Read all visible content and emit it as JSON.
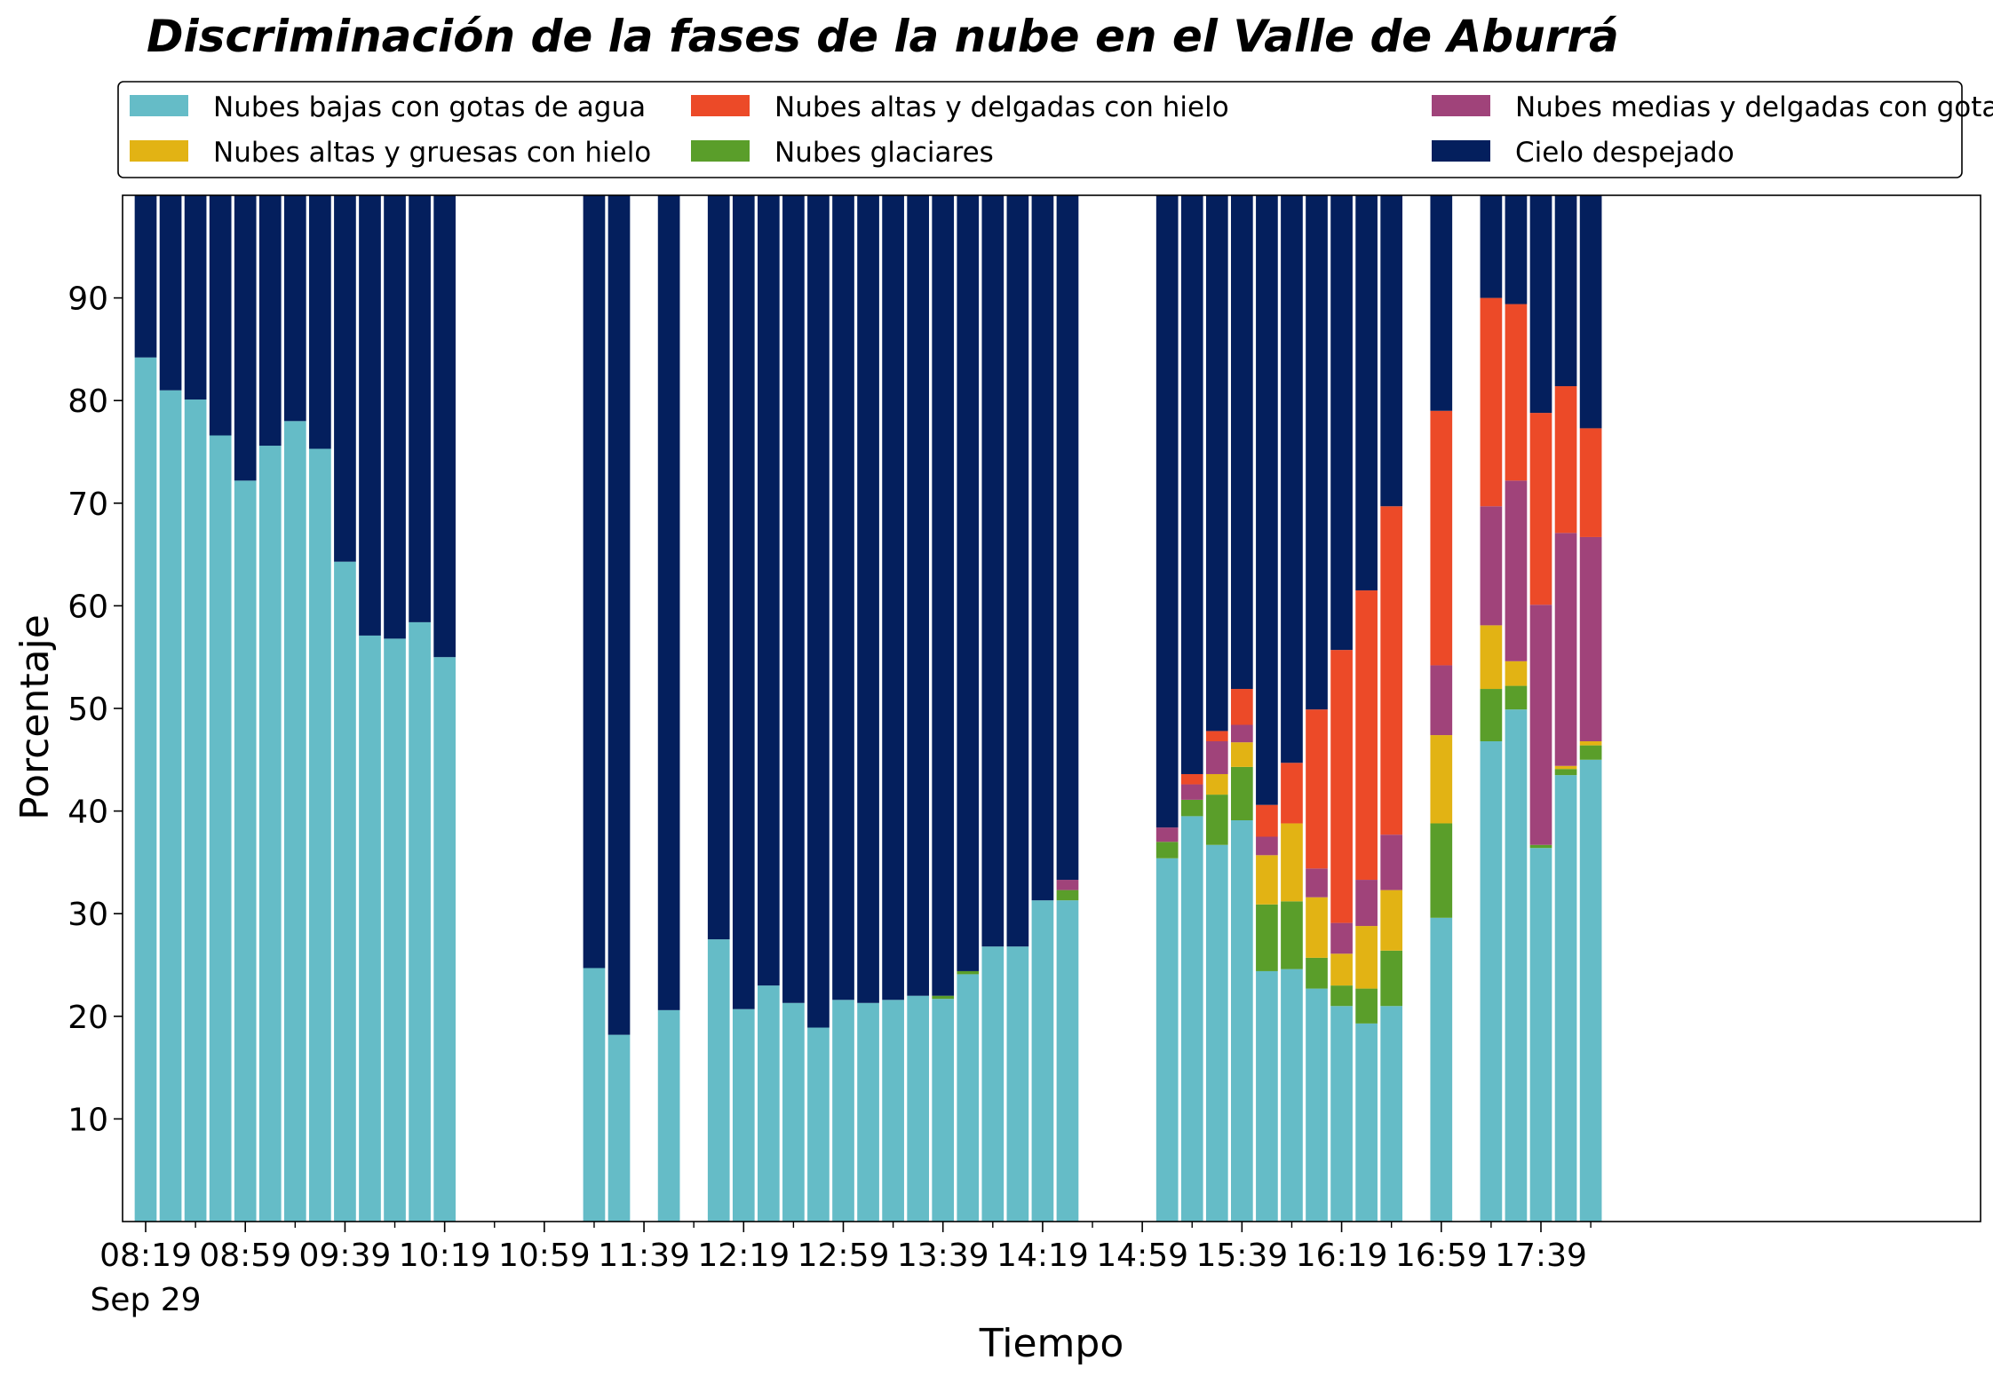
{
  "chart_data": {
    "type": "bar",
    "stacked": true,
    "title": "Discriminación de la fases de la nube en el Valle de Aburrá",
    "xlabel": "Tiempo",
    "ylabel": "Porcentaje",
    "ylim": [
      0,
      100
    ],
    "yticks": [
      10,
      20,
      30,
      40,
      50,
      60,
      70,
      80,
      90
    ],
    "xticks": [
      "08:19",
      "08:59",
      "09:39",
      "10:19",
      "10:59",
      "11:39",
      "12:19",
      "12:59",
      "13:39",
      "14:19",
      "14:59",
      "15:39",
      "16:19",
      "16:59",
      "17:39"
    ],
    "date_label": "Sep 29",
    "legend_position": "top",
    "colors": {
      "bajas": "#65bcc7",
      "glaciares": "#5a9e2a",
      "altas_gruesas": "#e2b314",
      "medias": "#a0437a",
      "altas_delgadas": "#ec4a28",
      "despejado": "#041f5d"
    },
    "series": [
      {
        "name": "Nubes bajas con gotas de agua",
        "key": "bajas"
      },
      {
        "name": "Nubes altas y gruesas con hielo",
        "key": "altas_gruesas"
      },
      {
        "name": "Nubes altas y delgadas con hielo",
        "key": "altas_delgadas"
      },
      {
        "name": "Nubes glaciares",
        "key": "glaciares"
      },
      {
        "name": "Nubes medias y delgadas con gotas de agua",
        "key": "medias"
      },
      {
        "name": "Cielo despejado",
        "key": "despejado"
      }
    ],
    "stack_order": [
      "bajas",
      "glaciares",
      "altas_gruesas",
      "medias",
      "altas_delgadas",
      "despejado"
    ],
    "bars": [
      {
        "time": "08:19",
        "bajas": 84.2,
        "glaciares": 0,
        "altas_gruesas": 0,
        "medias": 0,
        "altas_delgadas": 0
      },
      {
        "time": "08:29",
        "bajas": 81.0,
        "glaciares": 0,
        "altas_gruesas": 0,
        "medias": 0,
        "altas_delgadas": 0
      },
      {
        "time": "08:39",
        "bajas": 80.1,
        "glaciares": 0,
        "altas_gruesas": 0,
        "medias": 0,
        "altas_delgadas": 0
      },
      {
        "time": "08:49",
        "bajas": 76.6,
        "glaciares": 0,
        "altas_gruesas": 0,
        "medias": 0,
        "altas_delgadas": 0
      },
      {
        "time": "08:59",
        "bajas": 72.2,
        "glaciares": 0,
        "altas_gruesas": 0,
        "medias": 0,
        "altas_delgadas": 0
      },
      {
        "time": "09:09",
        "bajas": 75.6,
        "glaciares": 0,
        "altas_gruesas": 0,
        "medias": 0,
        "altas_delgadas": 0
      },
      {
        "time": "09:19",
        "bajas": 78.0,
        "glaciares": 0,
        "altas_gruesas": 0,
        "medias": 0,
        "altas_delgadas": 0
      },
      {
        "time": "09:29",
        "bajas": 75.3,
        "glaciares": 0,
        "altas_gruesas": 0,
        "medias": 0,
        "altas_delgadas": 0
      },
      {
        "time": "09:39",
        "bajas": 64.3,
        "glaciares": 0,
        "altas_gruesas": 0,
        "medias": 0,
        "altas_delgadas": 0
      },
      {
        "time": "09:49",
        "bajas": 57.1,
        "glaciares": 0,
        "altas_gruesas": 0,
        "medias": 0,
        "altas_delgadas": 0
      },
      {
        "time": "09:59",
        "bajas": 56.8,
        "glaciares": 0,
        "altas_gruesas": 0,
        "medias": 0,
        "altas_delgadas": 0
      },
      {
        "time": "10:09",
        "bajas": 58.4,
        "glaciares": 0,
        "altas_gruesas": 0,
        "medias": 0,
        "altas_delgadas": 0
      },
      {
        "time": "10:19",
        "bajas": 55.0,
        "glaciares": 0,
        "altas_gruesas": 0,
        "medias": 0,
        "altas_delgadas": 0
      },
      {
        "time": "11:19",
        "bajas": 24.7,
        "glaciares": 0,
        "altas_gruesas": 0,
        "medias": 0,
        "altas_delgadas": 0
      },
      {
        "time": "11:29",
        "bajas": 18.2,
        "glaciares": 0,
        "altas_gruesas": 0,
        "medias": 0,
        "altas_delgadas": 0
      },
      {
        "time": "11:49",
        "bajas": 20.6,
        "glaciares": 0,
        "altas_gruesas": 0,
        "medias": 0,
        "altas_delgadas": 0
      },
      {
        "time": "12:09",
        "bajas": 27.5,
        "glaciares": 0,
        "altas_gruesas": 0,
        "medias": 0,
        "altas_delgadas": 0
      },
      {
        "time": "12:19",
        "bajas": 20.7,
        "glaciares": 0,
        "altas_gruesas": 0,
        "medias": 0,
        "altas_delgadas": 0
      },
      {
        "time": "12:29",
        "bajas": 23.0,
        "glaciares": 0,
        "altas_gruesas": 0,
        "medias": 0,
        "altas_delgadas": 0
      },
      {
        "time": "12:39",
        "bajas": 21.3,
        "glaciares": 0,
        "altas_gruesas": 0,
        "medias": 0,
        "altas_delgadas": 0
      },
      {
        "time": "12:49",
        "bajas": 18.9,
        "glaciares": 0,
        "altas_gruesas": 0,
        "medias": 0,
        "altas_delgadas": 0
      },
      {
        "time": "12:59",
        "bajas": 21.6,
        "glaciares": 0,
        "altas_gruesas": 0,
        "medias": 0,
        "altas_delgadas": 0
      },
      {
        "time": "13:09",
        "bajas": 21.3,
        "glaciares": 0,
        "altas_gruesas": 0,
        "medias": 0,
        "altas_delgadas": 0
      },
      {
        "time": "13:19",
        "bajas": 21.6,
        "glaciares": 0,
        "altas_gruesas": 0,
        "medias": 0,
        "altas_delgadas": 0
      },
      {
        "time": "13:29",
        "bajas": 22.0,
        "glaciares": 0,
        "altas_gruesas": 0,
        "medias": 0,
        "altas_delgadas": 0
      },
      {
        "time": "13:39",
        "bajas": 21.7,
        "glaciares": 0.3,
        "altas_gruesas": 0,
        "medias": 0,
        "altas_delgadas": 0
      },
      {
        "time": "13:49",
        "bajas": 24.1,
        "glaciares": 0.3,
        "altas_gruesas": 0,
        "medias": 0,
        "altas_delgadas": 0
      },
      {
        "time": "13:59",
        "bajas": 26.8,
        "glaciares": 0,
        "altas_gruesas": 0,
        "medias": 0,
        "altas_delgadas": 0
      },
      {
        "time": "14:09",
        "bajas": 26.8,
        "glaciares": 0,
        "altas_gruesas": 0,
        "medias": 0,
        "altas_delgadas": 0
      },
      {
        "time": "14:19",
        "bajas": 31.3,
        "glaciares": 0,
        "altas_gruesas": 0,
        "medias": 0,
        "altas_delgadas": 0
      },
      {
        "time": "14:29",
        "bajas": 31.3,
        "glaciares": 1.0,
        "altas_gruesas": 0,
        "medias": 1.0,
        "altas_delgadas": 0
      },
      {
        "time": "15:09",
        "bajas": 35.4,
        "glaciares": 1.6,
        "altas_gruesas": 0,
        "medias": 1.4,
        "altas_delgadas": 0
      },
      {
        "time": "15:19",
        "bajas": 39.5,
        "glaciares": 1.6,
        "altas_gruesas": 0,
        "medias": 1.5,
        "altas_delgadas": 1.0
      },
      {
        "time": "15:29",
        "bajas": 36.7,
        "glaciares": 4.9,
        "altas_gruesas": 2.0,
        "medias": 3.2,
        "altas_delgadas": 1.0
      },
      {
        "time": "15:39",
        "bajas": 39.1,
        "glaciares": 5.2,
        "altas_gruesas": 2.4,
        "medias": 1.7,
        "altas_delgadas": 3.5
      },
      {
        "time": "15:49",
        "bajas": 24.4,
        "glaciares": 6.5,
        "altas_gruesas": 4.8,
        "medias": 1.8,
        "altas_delgadas": 3.1
      },
      {
        "time": "15:59",
        "bajas": 24.6,
        "glaciares": 6.6,
        "altas_gruesas": 7.6,
        "medias": 0,
        "altas_delgadas": 5.9
      },
      {
        "time": "16:09",
        "bajas": 22.7,
        "glaciares": 3.0,
        "altas_gruesas": 5.9,
        "medias": 2.8,
        "altas_delgadas": 15.5
      },
      {
        "time": "16:19",
        "bajas": 21.0,
        "glaciares": 2.0,
        "altas_gruesas": 3.1,
        "medias": 3.0,
        "altas_delgadas": 26.6
      },
      {
        "time": "16:29",
        "bajas": 19.3,
        "glaciares": 3.4,
        "altas_gruesas": 6.1,
        "medias": 4.5,
        "altas_delgadas": 28.2
      },
      {
        "time": "16:39",
        "bajas": 21.0,
        "glaciares": 5.4,
        "altas_gruesas": 5.9,
        "medias": 5.4,
        "altas_delgadas": 32.0
      },
      {
        "time": "16:59",
        "bajas": 29.6,
        "glaciares": 9.2,
        "altas_gruesas": 8.6,
        "medias": 6.8,
        "altas_delgadas": 24.8
      },
      {
        "time": "17:19",
        "bajas": 46.8,
        "glaciares": 5.1,
        "altas_gruesas": 6.2,
        "medias": 11.6,
        "altas_delgadas": 20.3
      },
      {
        "time": "17:29",
        "bajas": 49.9,
        "glaciares": 2.3,
        "altas_gruesas": 2.4,
        "medias": 17.6,
        "altas_delgadas": 17.2
      },
      {
        "time": "17:39",
        "bajas": 36.4,
        "glaciares": 0.3,
        "altas_gruesas": 0,
        "medias": 23.4,
        "altas_delgadas": 18.7
      },
      {
        "time": "17:49",
        "bajas": 43.5,
        "glaciares": 0.6,
        "altas_gruesas": 0.3,
        "medias": 22.7,
        "altas_delgadas": 14.3
      },
      {
        "time": "17:59",
        "bajas": 45.0,
        "glaciares": 1.4,
        "altas_gruesas": 0.4,
        "medias": 19.9,
        "altas_delgadas": 10.6
      }
    ]
  }
}
